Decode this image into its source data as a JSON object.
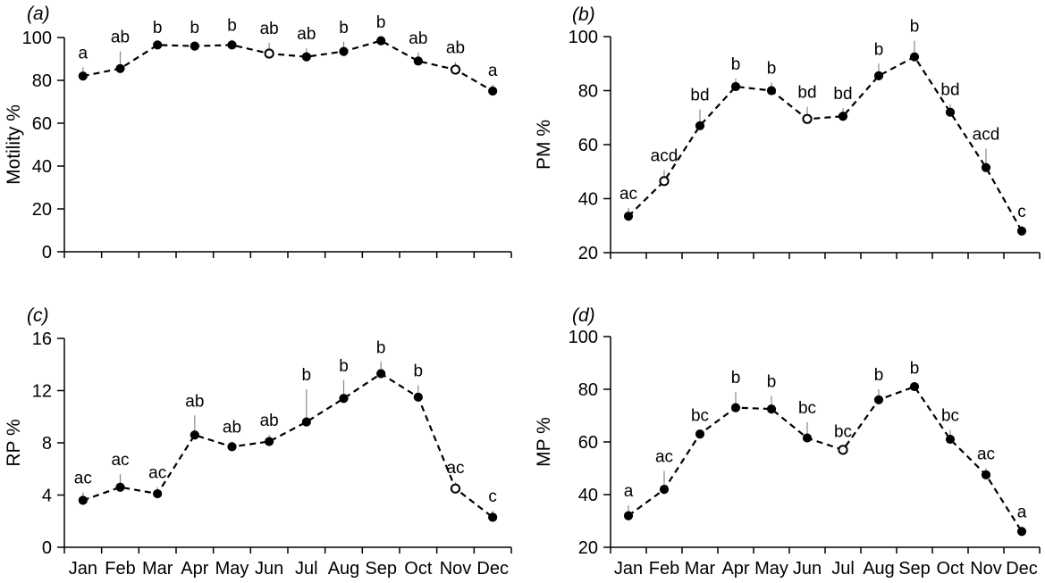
{
  "chart_data": [
    {
      "type": "line",
      "panel_label": "a",
      "ylabel": "Motility %",
      "ylim": [
        0,
        100
      ],
      "yticks": [
        0,
        20,
        40,
        60,
        80,
        100
      ],
      "categories": [
        "Jan",
        "Feb",
        "Mar",
        "Apr",
        "May",
        "Jun",
        "Jul",
        "Aug",
        "Sep",
        "Oct",
        "Nov",
        "Dec"
      ],
      "values": [
        82,
        85.5,
        96.5,
        96,
        96.5,
        92.5,
        91,
        93.5,
        98.5,
        89,
        85,
        75
      ],
      "errors": [
        4,
        8,
        1.5,
        2,
        2.5,
        5,
        4,
        4.5,
        2,
        4,
        3.5,
        3
      ],
      "significance": [
        "a",
        "ab",
        "b",
        "b",
        "b",
        "ab",
        "ab",
        "b",
        "b",
        "ab",
        "ab",
        "a"
      ],
      "x_labels_shown": false
    },
    {
      "type": "line",
      "panel_label": "b",
      "ylabel": "PM %",
      "ylim": [
        20,
        100
      ],
      "yticks": [
        20,
        40,
        60,
        80,
        100
      ],
      "categories": [
        "Jan",
        "Feb",
        "Mar",
        "Apr",
        "May",
        "Jun",
        "Jul",
        "Aug",
        "Sep",
        "Oct",
        "Nov",
        "Dec"
      ],
      "values": [
        33.5,
        46.5,
        67,
        81.5,
        80,
        69.5,
        70.5,
        85.5,
        92.5,
        72,
        51.5,
        28
      ],
      "errors": [
        3,
        4,
        6,
        3,
        3,
        4.5,
        3,
        4.5,
        6,
        3,
        7,
        2
      ],
      "significance": [
        "ac",
        "acd",
        "bd",
        "b",
        "b",
        "bd",
        "bd",
        "b",
        "b",
        "bd",
        "acd",
        "c"
      ],
      "x_labels_shown": false
    },
    {
      "type": "line",
      "panel_label": "c",
      "ylabel": "RP %",
      "ylim": [
        0,
        16
      ],
      "yticks": [
        0,
        4,
        8,
        12,
        16
      ],
      "categories": [
        "Jan",
        "Feb",
        "Mar",
        "Apr",
        "May",
        "Jun",
        "Jul",
        "Aug",
        "Sep",
        "Oct",
        "Nov",
        "Dec"
      ],
      "values": [
        3.6,
        4.6,
        4.1,
        8.6,
        7.7,
        8.1,
        9.6,
        11.4,
        13.3,
        11.5,
        4.5,
        2.3
      ],
      "errors": [
        0.6,
        1,
        0.5,
        1.5,
        0.4,
        0.5,
        2.5,
        1.4,
        0.9,
        0.9,
        0.5,
        0.5
      ],
      "significance": [
        "ac",
        "ac",
        "ac",
        "ab",
        "ab",
        "ab",
        "b",
        "b",
        "b",
        "b",
        "ac",
        "c"
      ],
      "x_labels_shown": true
    },
    {
      "type": "line",
      "panel_label": "d",
      "ylabel": "MP %",
      "ylim": [
        20,
        100
      ],
      "yticks": [
        20,
        40,
        60,
        80,
        100
      ],
      "categories": [
        "Jan",
        "Feb",
        "Mar",
        "Apr",
        "May",
        "Jun",
        "Jul",
        "Aug",
        "Sep",
        "Oct",
        "Nov",
        "Dec"
      ],
      "values": [
        32,
        42,
        63,
        73,
        72.5,
        61.5,
        57,
        76,
        81,
        61,
        47.5,
        26
      ],
      "errors": [
        4,
        7,
        1.5,
        6,
        5,
        6,
        1.5,
        4,
        1.5,
        3.5,
        2.5,
        2
      ],
      "significance": [
        "a",
        "ac",
        "bc",
        "b",
        "b",
        "bc",
        "bc",
        "b",
        "b",
        "bc",
        "ac",
        "a"
      ],
      "x_labels_shown": true
    }
  ]
}
